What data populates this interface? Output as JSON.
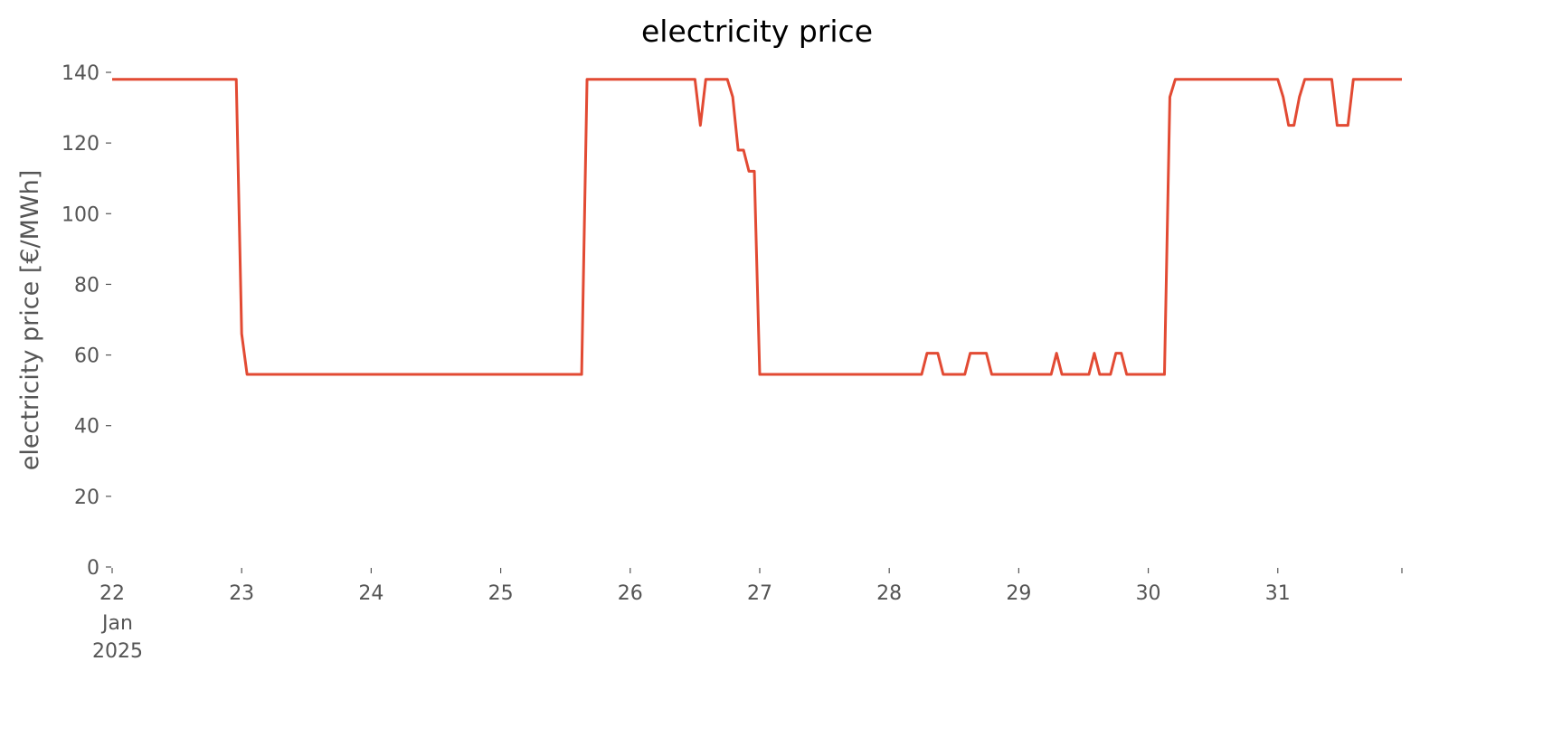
{
  "chart_data": {
    "type": "line",
    "title": "electricity price",
    "y_label": "electricity price [€/MWh]",
    "x": [
      "2025-01-22 00:00",
      "2025-01-22 23:00",
      "2025-01-23 00:00",
      "2025-01-23 01:00",
      "2025-01-25 15:00",
      "2025-01-25 16:00",
      "2025-01-26 12:00",
      "2025-01-26 13:00",
      "2025-01-26 14:00",
      "2025-01-26 18:00",
      "2025-01-26 19:00",
      "2025-01-26 20:00",
      "2025-01-26 21:00",
      "2025-01-26 22:00",
      "2025-01-26 23:00",
      "2025-01-27 00:00",
      "2025-01-28 06:00",
      "2025-01-28 07:00",
      "2025-01-28 09:00",
      "2025-01-28 10:00",
      "2025-01-28 14:00",
      "2025-01-28 15:00",
      "2025-01-28 18:00",
      "2025-01-28 19:00",
      "2025-01-29 06:00",
      "2025-01-29 07:00",
      "2025-01-29 08:00",
      "2025-01-29 13:00",
      "2025-01-29 14:00",
      "2025-01-29 15:00",
      "2025-01-29 17:00",
      "2025-01-29 18:00",
      "2025-01-29 19:00",
      "2025-01-29 20:00",
      "2025-01-30 03:00",
      "2025-01-30 04:00",
      "2025-01-30 05:00",
      "2025-01-31 00:00",
      "2025-01-31 01:00",
      "2025-01-31 02:00",
      "2025-01-31 03:00",
      "2025-01-31 04:00",
      "2025-01-31 05:00",
      "2025-01-31 10:00",
      "2025-01-31 11:00",
      "2025-01-31 13:00",
      "2025-01-31 14:00",
      "2025-01-31 23:00"
    ],
    "series": [
      {
        "name": "electricity price",
        "color": "#e24a33",
        "values": [
          138,
          138,
          66,
          54.5,
          54.5,
          138,
          138,
          125,
          138,
          138,
          133,
          118,
          118,
          112,
          112,
          54.5,
          54.5,
          60.5,
          60.5,
          54.5,
          54.5,
          60.5,
          60.5,
          54.5,
          54.5,
          60.5,
          54.5,
          54.5,
          60.5,
          54.5,
          54.5,
          60.5,
          60.5,
          54.5,
          54.5,
          133,
          138,
          138,
          133,
          125,
          125,
          133,
          138,
          138,
          125,
          125,
          138,
          138
        ]
      }
    ],
    "xlim": [
      "2025-01-22 00:00",
      "2025-01-31 23:00"
    ],
    "xticks": [
      {
        "value": "2025-01-22 00:00",
        "label": "22"
      },
      {
        "value": "2025-01-23 00:00",
        "label": "23"
      },
      {
        "value": "2025-01-24 00:00",
        "label": "24"
      },
      {
        "value": "2025-01-25 00:00",
        "label": "25"
      },
      {
        "value": "2025-01-26 00:00",
        "label": "26"
      },
      {
        "value": "2025-01-27 00:00",
        "label": "27"
      },
      {
        "value": "2025-01-28 00:00",
        "label": "28"
      },
      {
        "value": "2025-01-29 00:00",
        "label": "29"
      },
      {
        "value": "2025-01-30 00:00",
        "label": "30"
      },
      {
        "value": "2025-01-31 00:00",
        "label": "31"
      },
      {
        "value": "2025-01-31 23:00",
        "label": null
      }
    ],
    "x_first_tick_sublabels": [
      "Jan",
      "2025"
    ],
    "ylim": [
      0,
      140
    ],
    "yticks": [
      0,
      20,
      40,
      60,
      80,
      100,
      120,
      140
    ],
    "grid": false
  }
}
